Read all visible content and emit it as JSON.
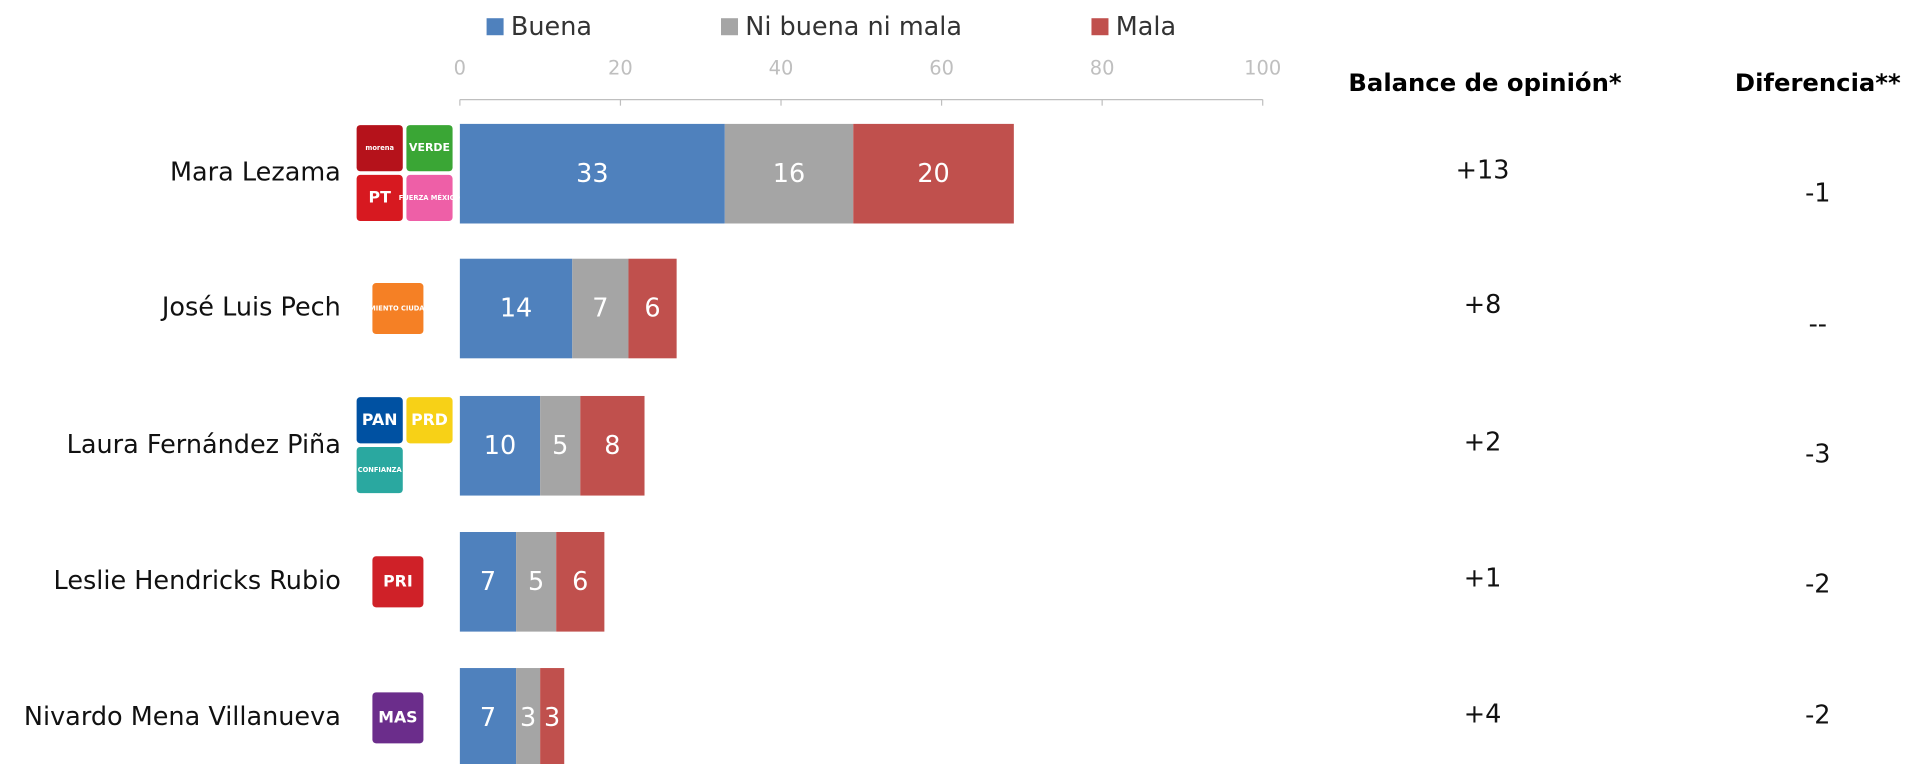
{
  "chart_data": {
    "type": "stacked-bar-horizontal",
    "categories": [
      "Mara Lezama",
      "José Luis Pech",
      "Laura Fernández Piña",
      "Leslie Hendricks Rubio",
      "Nivardo Mena Villanueva"
    ],
    "series": [
      {
        "name": "Buena",
        "color": "#4f81bd",
        "values": [
          33,
          14,
          10,
          7,
          7
        ]
      },
      {
        "name": "Ni buena ni mala",
        "color": "#a5a5a5",
        "values": [
          16,
          7,
          5,
          5,
          3
        ]
      },
      {
        "name": "Mala",
        "color": "#c0504d",
        "values": [
          20,
          6,
          8,
          6,
          3
        ]
      }
    ],
    "xlim": [
      0,
      100
    ],
    "xticks": [
      0,
      20,
      40,
      60,
      80,
      100
    ],
    "balance": {
      "title": "Balance de opinión*",
      "values": [
        13,
        8,
        2,
        1,
        4
      ],
      "value_labels": [
        "+13",
        "+8",
        "+2",
        "+1",
        "+4"
      ]
    },
    "diferencia": {
      "title": "Diferencia**",
      "values": [
        -1,
        null,
        -3,
        -2,
        -2
      ],
      "value_labels": [
        "-1",
        "--",
        "-3",
        "-2",
        "-2"
      ]
    },
    "logos": [
      [
        {
          "text": "morena",
          "color": "#b5121b"
        },
        {
          "text": "VERDE",
          "color": "#3aa635"
        },
        {
          "text": "PT",
          "color": "#d71920"
        },
        {
          "text": "FUERZA MÉXICO",
          "color": "#ee5fa7"
        }
      ],
      [
        {
          "text": "MOVIMIENTO CIUDADANO",
          "color": "#f58025"
        }
      ],
      [
        {
          "text": "PAN",
          "color": "#0051a2"
        },
        {
          "text": "PRD",
          "color": "#f7d117"
        },
        {
          "text": "CONFIANZA",
          "color": "#2aa8a0"
        }
      ],
      [
        {
          "text": "PRI",
          "color": "#cf2128"
        }
      ],
      [
        {
          "text": "MAS",
          "color": "#6b2d8b"
        }
      ]
    ]
  }
}
